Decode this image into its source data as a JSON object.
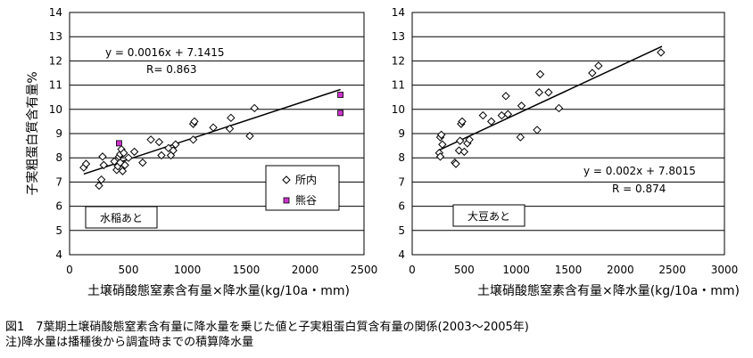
{
  "chart_data": [
    {
      "type": "scatter",
      "ylabel": "子実粗蛋白質含有量%",
      "xlabel": "土壌硝酸態窒素含有量×降水量(kg/10a・mm)",
      "xlim": [
        0,
        2500
      ],
      "ylim": [
        4,
        14
      ],
      "xticks": [
        0,
        500,
        1000,
        1500,
        2000,
        2500
      ],
      "yticks": [
        4,
        5,
        6,
        7,
        8,
        9,
        10,
        11,
        12,
        13,
        14
      ],
      "grid": "horizontal",
      "legend_position": "bottom-right",
      "box_label": "水稲あと",
      "equation": "y = 0.0016x + 7.1415",
      "r_text": "R=  0.863",
      "trendline": {
        "x": [
          120,
          2300
        ],
        "y": [
          7.33,
          10.82
        ]
      },
      "series": [
        {
          "name": "所内",
          "marker": "diamond-open",
          "points": [
            [
              120,
              7.6
            ],
            [
              140,
              7.75
            ],
            [
              250,
              6.85
            ],
            [
              270,
              7.1
            ],
            [
              280,
              8.05
            ],
            [
              290,
              7.7
            ],
            [
              380,
              7.85
            ],
            [
              400,
              7.5
            ],
            [
              410,
              7.65
            ],
            [
              420,
              8.05
            ],
            [
              430,
              7.8
            ],
            [
              430,
              8.15
            ],
            [
              440,
              8.35
            ],
            [
              450,
              7.45
            ],
            [
              460,
              8.2
            ],
            [
              470,
              7.7
            ],
            [
              500,
              8.0
            ],
            [
              550,
              8.25
            ],
            [
              620,
              7.8
            ],
            [
              690,
              8.75
            ],
            [
              760,
              8.65
            ],
            [
              780,
              8.1
            ],
            [
              840,
              8.4
            ],
            [
              860,
              8.1
            ],
            [
              880,
              8.3
            ],
            [
              900,
              8.55
            ],
            [
              1050,
              8.75
            ],
            [
              1050,
              9.4
            ],
            [
              1060,
              9.5
            ],
            [
              1220,
              9.25
            ],
            [
              1360,
              9.2
            ],
            [
              1370,
              9.65
            ],
            [
              1530,
              8.9
            ],
            [
              1570,
              10.05
            ]
          ]
        },
        {
          "name": "熊谷",
          "marker": "square-filled",
          "color": "#cc33cc",
          "points": [
            [
              420,
              8.6
            ],
            [
              2300,
              10.6
            ],
            [
              2300,
              9.85
            ]
          ]
        }
      ]
    },
    {
      "type": "scatter",
      "xlabel": "土壌硝酸態窒素含有量×降水量(kg/10a・mm)",
      "xlim": [
        0,
        3000
      ],
      "ylim": [
        4,
        14
      ],
      "xticks": [
        0,
        500,
        1000,
        1500,
        2000,
        2500,
        3000
      ],
      "yticks": [
        4,
        5,
        6,
        7,
        8,
        9,
        10,
        11,
        12,
        13,
        14
      ],
      "grid": "horizontal",
      "box_label": "大豆あと",
      "equation": "y = 0.002x + 7.8015",
      "r_text": "R = 0.874",
      "trendline": {
        "x": [
          250,
          2400
        ],
        "y": [
          8.3,
          12.6
        ]
      },
      "series": [
        {
          "marker": "diamond-open",
          "points": [
            [
              260,
              8.2
            ],
            [
              270,
              8.05
            ],
            [
              270,
              8.85
            ],
            [
              280,
              8.95
            ],
            [
              290,
              8.55
            ],
            [
              410,
              7.8
            ],
            [
              420,
              7.75
            ],
            [
              450,
              8.3
            ],
            [
              460,
              8.7
            ],
            [
              470,
              9.4
            ],
            [
              480,
              9.5
            ],
            [
              500,
              8.25
            ],
            [
              530,
              8.6
            ],
            [
              550,
              8.75
            ],
            [
              680,
              9.75
            ],
            [
              760,
              9.5
            ],
            [
              860,
              9.75
            ],
            [
              900,
              10.55
            ],
            [
              920,
              9.8
            ],
            [
              1040,
              8.85
            ],
            [
              1050,
              10.15
            ],
            [
              1200,
              9.15
            ],
            [
              1220,
              10.7
            ],
            [
              1230,
              11.45
            ],
            [
              1310,
              10.7
            ],
            [
              1410,
              10.05
            ],
            [
              1730,
              11.5
            ],
            [
              1790,
              11.8
            ],
            [
              2390,
              12.35
            ]
          ]
        }
      ]
    }
  ],
  "caption": {
    "line1": "図1　7葉期土壌硝酸態窒素含有量に降水量を乗じた値と子実粗蛋白質含有量の関係(2003～2005年)",
    "line2": "注)降水量は播種後から調査時までの積算降水量"
  }
}
